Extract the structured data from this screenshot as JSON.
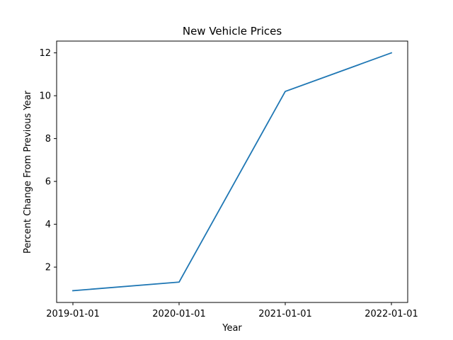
{
  "chart_data": {
    "type": "line",
    "title": "New Vehicle Prices",
    "xlabel": "Year",
    "ylabel": "Percent Change From Previous Year",
    "x": [
      "2019-01-01",
      "2020-01-01",
      "2021-01-01",
      "2022-01-01"
    ],
    "series": [
      {
        "values": [
          0.9,
          1.3,
          10.2,
          12.0
        ],
        "color": "#1f77b4"
      }
    ],
    "y_ticks": [
      2,
      4,
      6,
      8,
      10,
      12
    ],
    "ylim": [
      0.35,
      12.55
    ],
    "grid": false,
    "legend": "none"
  }
}
